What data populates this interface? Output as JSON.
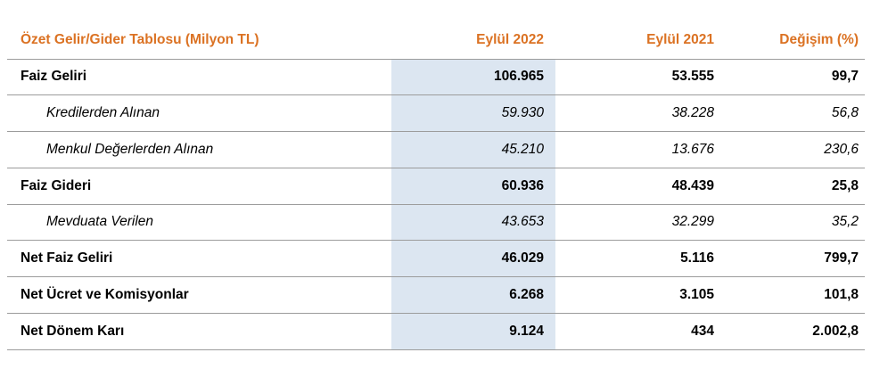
{
  "table": {
    "title": "Özet Gelir/Gider Tablosu (Milyon TL)",
    "columns": {
      "col_2022": "Eylül 2022",
      "col_2021": "Eylül 2021",
      "col_change": "Değişim (%)"
    },
    "rows": [
      {
        "label": "Faiz Geliri",
        "emphasis": "bold",
        "indent": false,
        "eylul_2022": "106.965",
        "eylul_2021": "53.555",
        "degisim": "99,7"
      },
      {
        "label": "Kredilerden Alınan",
        "emphasis": "italic",
        "indent": true,
        "eylul_2022": "59.930",
        "eylul_2021": "38.228",
        "degisim": "56,8"
      },
      {
        "label": "Menkul Değerlerden Alınan",
        "emphasis": "italic",
        "indent": true,
        "eylul_2022": "45.210",
        "eylul_2021": "13.676",
        "degisim": "230,6"
      },
      {
        "label": "Faiz Gideri",
        "emphasis": "bold",
        "indent": false,
        "eylul_2022": "60.936",
        "eylul_2021": "48.439",
        "degisim": "25,8"
      },
      {
        "label": "Mevduata Verilen",
        "emphasis": "italic",
        "indent": true,
        "eylul_2022": "43.653",
        "eylul_2021": "32.299",
        "degisim": "35,2"
      },
      {
        "label": "Net Faiz Geliri",
        "emphasis": "bold",
        "indent": false,
        "eylul_2022": "46.029",
        "eylul_2021": "5.116",
        "degisim": "799,7"
      },
      {
        "label": "Net Ücret ve Komisyonlar",
        "emphasis": "bold",
        "indent": false,
        "eylul_2022": "6.268",
        "eylul_2021": "3.105",
        "degisim": "101,8"
      },
      {
        "label": "Net Dönem Karı",
        "emphasis": "bold",
        "indent": false,
        "eylul_2022": "9.124",
        "eylul_2021": "434",
        "degisim": "2.002,8"
      }
    ],
    "colors": {
      "header_text": "#db7223",
      "highlight_column": "#dce6f1",
      "grid_line": "#9c9c9c",
      "body_text": "#000000"
    }
  }
}
